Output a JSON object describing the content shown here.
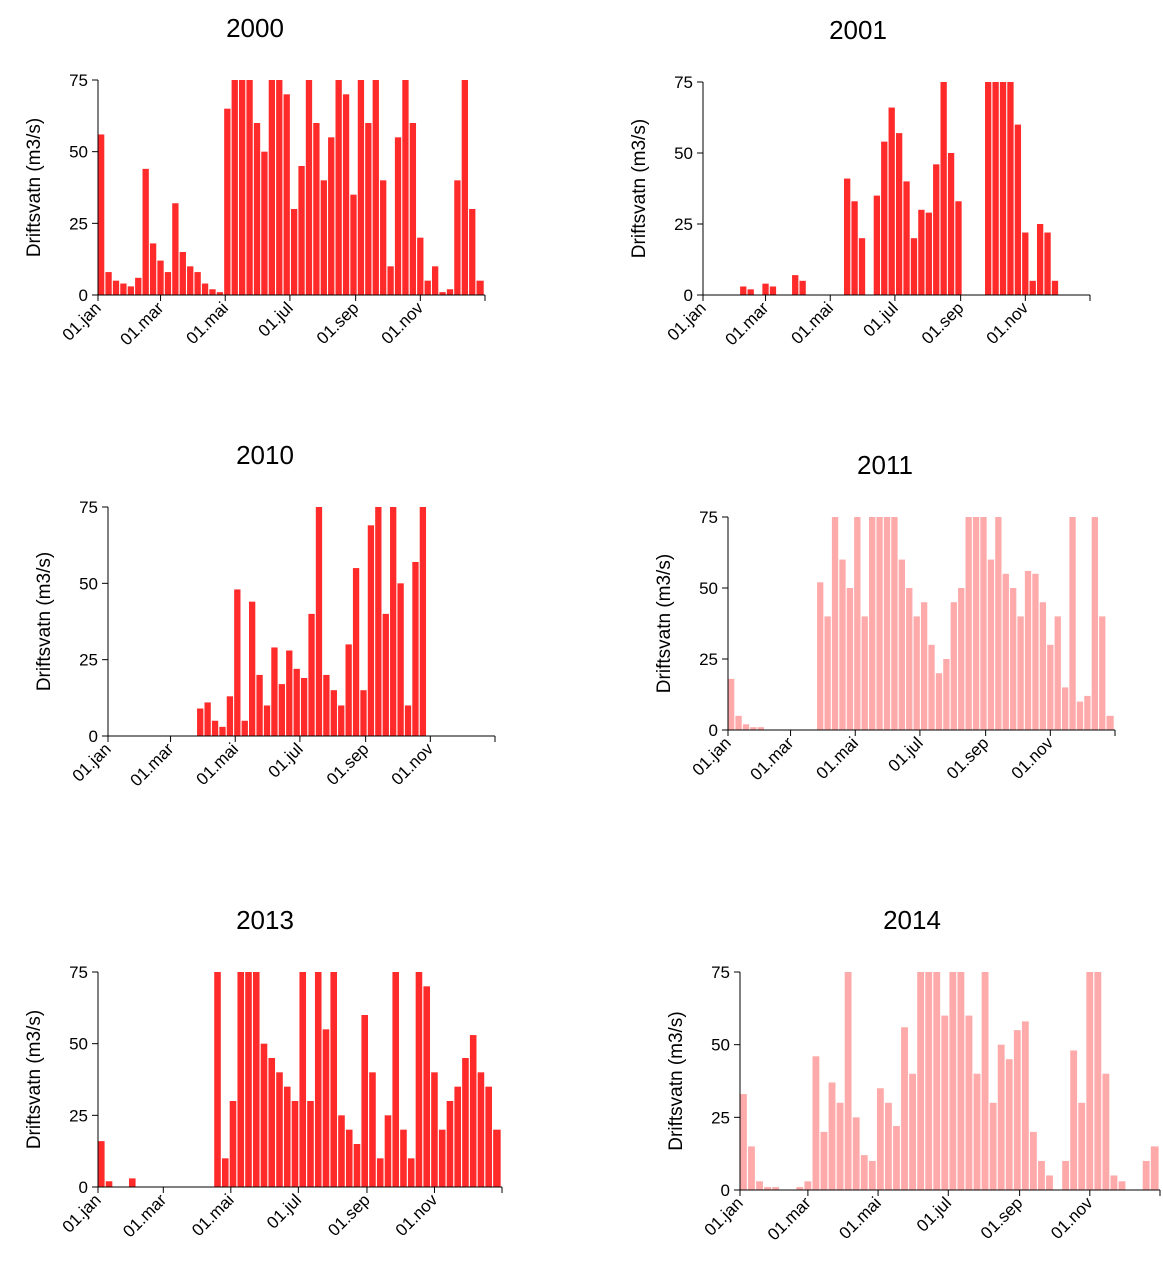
{
  "chart_data": [
    {
      "type": "bar",
      "title": "2000",
      "y_label": "Driftsvatn (m3/s)",
      "color": "#ff2a2a",
      "x": [
        1,
        8,
        15,
        22,
        29,
        36,
        43,
        50,
        57,
        64,
        71,
        78,
        85,
        92,
        99,
        106,
        113,
        120,
        127,
        134,
        141,
        148,
        155,
        162,
        169,
        176,
        183,
        190,
        197,
        204,
        211,
        218,
        225,
        232,
        239,
        246,
        253,
        260,
        267,
        274,
        281,
        288,
        295,
        302,
        309,
        316,
        323,
        330,
        337,
        344,
        351,
        358
      ],
      "values": [
        56,
        8,
        5,
        4,
        3,
        6,
        44,
        18,
        12,
        8,
        32,
        15,
        10,
        8,
        4,
        2,
        1,
        65,
        75,
        75,
        75,
        60,
        50,
        75,
        75,
        70,
        30,
        45,
        75,
        60,
        40,
        55,
        75,
        70,
        35,
        75,
        60,
        75,
        40,
        10,
        55,
        75,
        60,
        20,
        5,
        10,
        1,
        2,
        40,
        75,
        30,
        5
      ],
      "xlim": [
        1,
        366
      ],
      "xticks": [
        {
          "value": 1,
          "label": "01.jan"
        },
        {
          "value": 60,
          "label": "01.mar"
        },
        {
          "value": 121,
          "label": "01.mai"
        },
        {
          "value": 182,
          "label": "01.jul"
        },
        {
          "value": 244,
          "label": "01.sep"
        },
        {
          "value": 305,
          "label": "01.nov"
        }
      ],
      "ylim": [
        0,
        75
      ],
      "yticks": [
        0,
        25,
        50,
        75
      ]
    },
    {
      "type": "bar",
      "title": "2001",
      "y_label": "Driftsvatn (m3/s)",
      "color": "#ff2a2a",
      "x": [
        1,
        8,
        15,
        22,
        29,
        36,
        43,
        50,
        57,
        64,
        71,
        78,
        85,
        92,
        99,
        106,
        113,
        120,
        127,
        134,
        141,
        148,
        155,
        162,
        169,
        176,
        183,
        190,
        197,
        204,
        211,
        218,
        225,
        232,
        239,
        246,
        253,
        260,
        267,
        274,
        281,
        288,
        295,
        302,
        309,
        316,
        323,
        330,
        337,
        344,
        351,
        358
      ],
      "values": [
        0,
        0,
        0,
        0,
        0,
        3,
        2,
        0,
        4,
        3,
        0,
        0,
        7,
        5,
        0,
        0,
        0,
        0,
        0,
        41,
        33,
        20,
        0,
        35,
        54,
        66,
        57,
        40,
        20,
        30,
        29,
        46,
        75,
        50,
        33,
        0,
        0,
        0,
        75,
        75,
        75,
        75,
        60,
        22,
        5,
        25,
        22,
        5,
        0,
        0,
        0,
        0
      ],
      "xlim": [
        1,
        366
      ],
      "xticks": [
        {
          "value": 1,
          "label": "01.jan"
        },
        {
          "value": 60,
          "label": "01.mar"
        },
        {
          "value": 121,
          "label": "01.mai"
        },
        {
          "value": 182,
          "label": "01.jul"
        },
        {
          "value": 244,
          "label": "01.sep"
        },
        {
          "value": 305,
          "label": "01.nov"
        }
      ],
      "ylim": [
        0,
        75
      ],
      "yticks": [
        0,
        25,
        50,
        75
      ]
    },
    {
      "type": "bar",
      "title": "2010",
      "y_label": "Driftsvatn (m3/s)",
      "color": "#ff2a2a",
      "x": [
        1,
        8,
        15,
        22,
        29,
        36,
        43,
        50,
        57,
        64,
        71,
        78,
        85,
        92,
        99,
        106,
        113,
        120,
        127,
        134,
        141,
        148,
        155,
        162,
        169,
        176,
        183,
        190,
        197,
        204,
        211,
        218,
        225,
        232,
        239,
        246,
        253,
        260,
        267,
        274,
        281,
        288,
        295,
        302,
        309,
        316,
        323,
        330,
        337,
        344,
        351,
        358
      ],
      "values": [
        0,
        0,
        0,
        0,
        0,
        0,
        0,
        0,
        0,
        0,
        0,
        0,
        9,
        11,
        5,
        3,
        13,
        48,
        5,
        44,
        20,
        10,
        29,
        17,
        28,
        22,
        19,
        40,
        75,
        20,
        15,
        10,
        30,
        55,
        15,
        69,
        75,
        40,
        75,
        50,
        10,
        57,
        75,
        0,
        0,
        0,
        0,
        0,
        0,
        0,
        0,
        0
      ],
      "xlim": [
        1,
        366
      ],
      "xticks": [
        {
          "value": 1,
          "label": "01.jan"
        },
        {
          "value": 60,
          "label": "01.mar"
        },
        {
          "value": 121,
          "label": "01.mai"
        },
        {
          "value": 182,
          "label": "01.jul"
        },
        {
          "value": 244,
          "label": "01.sep"
        },
        {
          "value": 305,
          "label": "01.nov"
        }
      ],
      "ylim": [
        0,
        75
      ],
      "yticks": [
        0,
        25,
        50,
        75
      ]
    },
    {
      "type": "bar",
      "title": "2011",
      "y_label": "Driftsvatn (m3/s)",
      "color": "#ffaaaa",
      "x": [
        1,
        8,
        15,
        22,
        29,
        36,
        43,
        50,
        57,
        64,
        71,
        78,
        85,
        92,
        99,
        106,
        113,
        120,
        127,
        134,
        141,
        148,
        155,
        162,
        169,
        176,
        183,
        190,
        197,
        204,
        211,
        218,
        225,
        232,
        239,
        246,
        253,
        260,
        267,
        274,
        281,
        288,
        295,
        302,
        309,
        316,
        323,
        330,
        337,
        344,
        351,
        358
      ],
      "values": [
        18,
        5,
        2,
        1,
        1,
        0,
        0,
        0,
        0,
        0,
        0,
        0,
        52,
        40,
        75,
        60,
        50,
        75,
        40,
        75,
        75,
        75,
        75,
        60,
        50,
        40,
        45,
        30,
        20,
        25,
        45,
        50,
        75,
        75,
        75,
        60,
        75,
        55,
        50,
        40,
        56,
        55,
        45,
        30,
        40,
        15,
        75,
        10,
        12,
        75,
        40,
        5
      ],
      "xlim": [
        1,
        366
      ],
      "xticks": [
        {
          "value": 1,
          "label": "01.jan"
        },
        {
          "value": 60,
          "label": "01.mar"
        },
        {
          "value": 121,
          "label": "01.mai"
        },
        {
          "value": 182,
          "label": "01.jul"
        },
        {
          "value": 244,
          "label": "01.sep"
        },
        {
          "value": 305,
          "label": "01.nov"
        }
      ],
      "ylim": [
        0,
        75
      ],
      "yticks": [
        0,
        25,
        50,
        75
      ]
    },
    {
      "type": "bar",
      "title": "2013",
      "y_label": "Driftsvatn (m3/s)",
      "color": "#ff2a2a",
      "x": [
        1,
        8,
        15,
        22,
        29,
        36,
        43,
        50,
        57,
        64,
        71,
        78,
        85,
        92,
        99,
        106,
        113,
        120,
        127,
        134,
        141,
        148,
        155,
        162,
        169,
        176,
        183,
        190,
        197,
        204,
        211,
        218,
        225,
        232,
        239,
        246,
        253,
        260,
        267,
        274,
        281,
        288,
        295,
        302,
        309,
        316,
        323,
        330,
        337,
        344,
        351,
        358
      ],
      "values": [
        16,
        2,
        0,
        0,
        3,
        0,
        0,
        0,
        0,
        0,
        0,
        0,
        0,
        0,
        0,
        75,
        10,
        30,
        75,
        75,
        75,
        50,
        45,
        40,
        35,
        30,
        75,
        30,
        75,
        55,
        75,
        25,
        20,
        15,
        60,
        40,
        10,
        25,
        75,
        20,
        10,
        75,
        70,
        40,
        20,
        30,
        35,
        45,
        53,
        40,
        35,
        20
      ],
      "xlim": [
        1,
        366
      ],
      "xticks": [
        {
          "value": 1,
          "label": "01.jan"
        },
        {
          "value": 60,
          "label": "01.mar"
        },
        {
          "value": 121,
          "label": "01.mai"
        },
        {
          "value": 182,
          "label": "01.jul"
        },
        {
          "value": 244,
          "label": "01.sep"
        },
        {
          "value": 305,
          "label": "01.nov"
        }
      ],
      "ylim": [
        0,
        75
      ],
      "yticks": [
        0,
        25,
        50,
        75
      ]
    },
    {
      "type": "bar",
      "title": "2014",
      "y_label": "Driftsvatn (m3/s)",
      "color": "#ffaaaa",
      "x": [
        1,
        8,
        15,
        22,
        29,
        36,
        43,
        50,
        57,
        64,
        71,
        78,
        85,
        92,
        99,
        106,
        113,
        120,
        127,
        134,
        141,
        148,
        155,
        162,
        169,
        176,
        183,
        190,
        197,
        204,
        211,
        218,
        225,
        232,
        239,
        246,
        253,
        260,
        267,
        274,
        281,
        288,
        295,
        302,
        309,
        316,
        323,
        330,
        337,
        344,
        351,
        358
      ],
      "values": [
        33,
        15,
        3,
        1,
        1,
        0,
        0,
        1,
        3,
        46,
        20,
        37,
        30,
        75,
        25,
        12,
        10,
        35,
        30,
        22,
        56,
        40,
        75,
        75,
        75,
        60,
        75,
        75,
        60,
        40,
        75,
        30,
        50,
        45,
        55,
        58,
        20,
        10,
        5,
        0,
        10,
        48,
        30,
        75,
        75,
        40,
        5,
        3,
        0,
        0,
        10,
        15
      ],
      "xlim": [
        1,
        366
      ],
      "xticks": [
        {
          "value": 1,
          "label": "01.jan"
        },
        {
          "value": 60,
          "label": "01.mar"
        },
        {
          "value": 121,
          "label": "01.mai"
        },
        {
          "value": 182,
          "label": "01.jul"
        },
        {
          "value": 244,
          "label": "01.sep"
        },
        {
          "value": 305,
          "label": "01.nov"
        }
      ],
      "ylim": [
        0,
        75
      ],
      "yticks": [
        0,
        25,
        50,
        75
      ]
    }
  ]
}
